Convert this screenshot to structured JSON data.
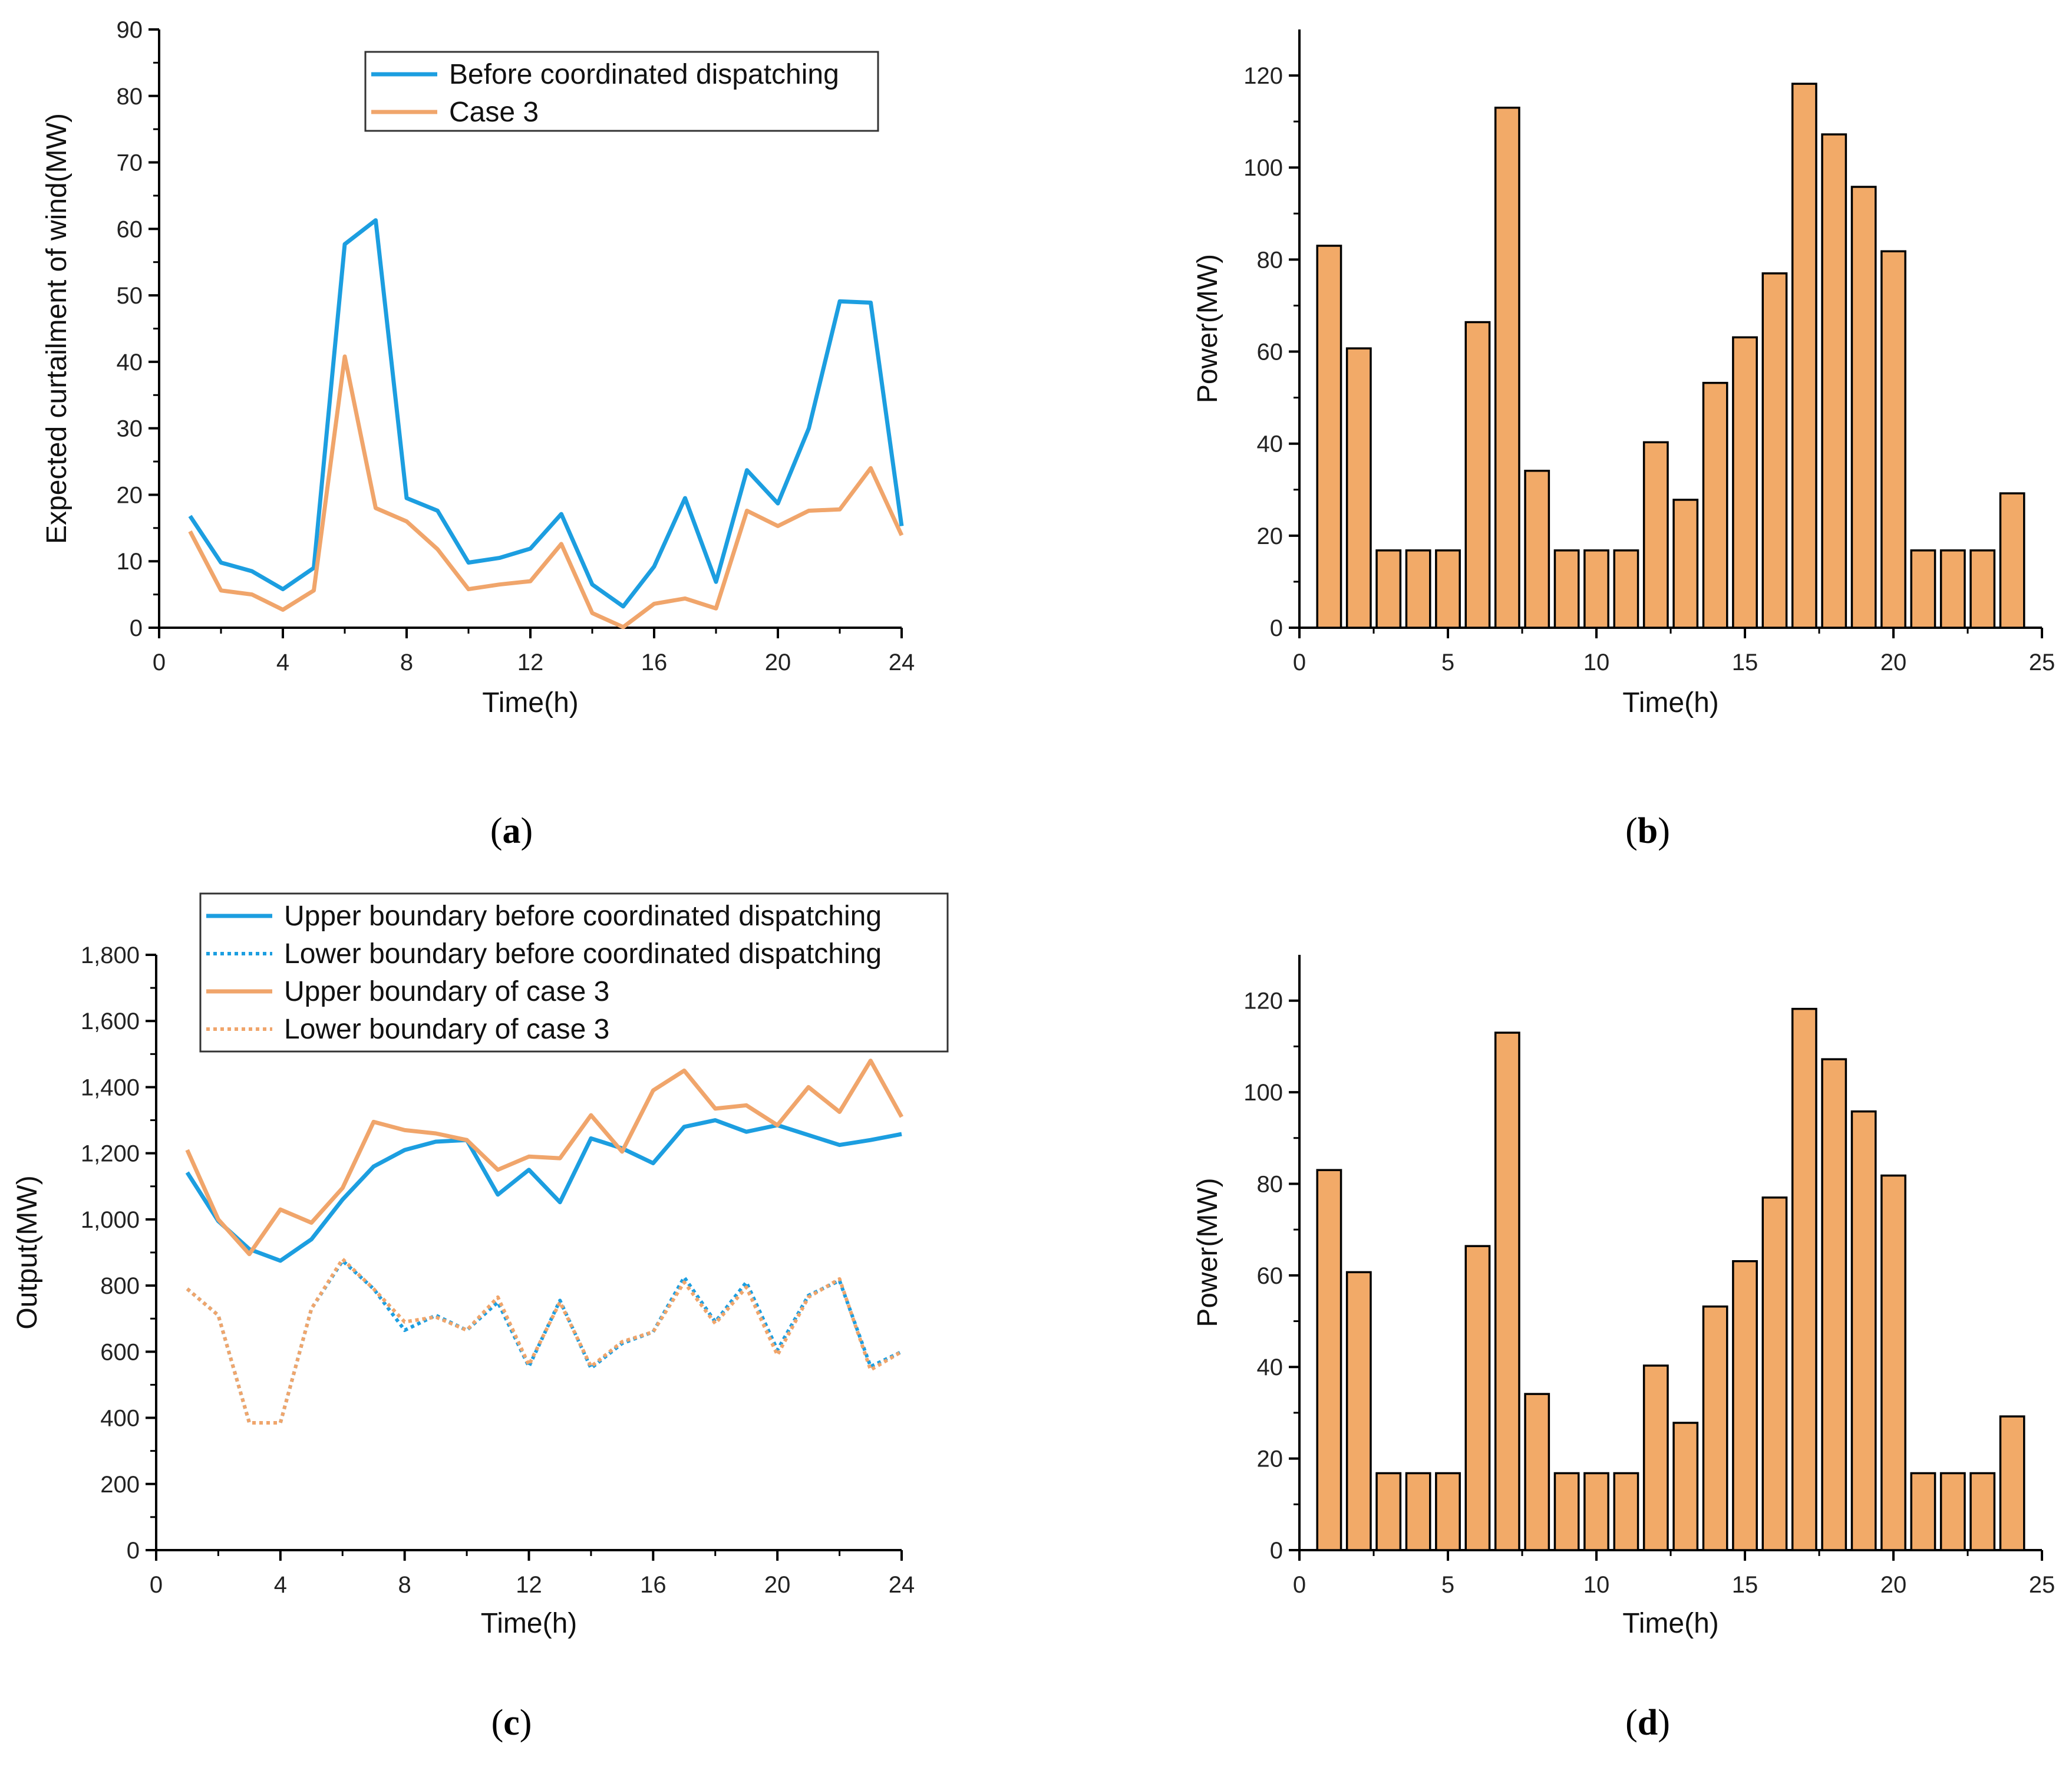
{
  "figure": {
    "panel_labels": [
      {
        "open": "(",
        "letter": "a",
        "close": ")"
      },
      {
        "open": "(",
        "letter": "b",
        "close": ")"
      },
      {
        "open": "(",
        "letter": "c",
        "close": ")"
      },
      {
        "open": "(",
        "letter": "d",
        "close": ")"
      }
    ]
  },
  "colors": {
    "blue": "#1c9ee0",
    "orange": "#f0a56b",
    "bar_fill": "#f2aa68",
    "bar_stroke": "#000000"
  },
  "chart_data": [
    {
      "id": "a",
      "type": "line",
      "xlabel": "Time(h)",
      "ylabel": "Expected curtailment of wind(MW)",
      "xlim": [
        0,
        24
      ],
      "ylim": [
        0,
        90
      ],
      "x_ticks": [
        0,
        4,
        8,
        12,
        16,
        20,
        24
      ],
      "x_tick_labels": [
        "0",
        "4",
        "8",
        "12",
        "16",
        "20",
        "24"
      ],
      "y_ticks": [
        0,
        10,
        20,
        30,
        40,
        50,
        60,
        70,
        80,
        90
      ],
      "y_tick_labels": [
        "0",
        "10",
        "20",
        "30",
        "40",
        "50",
        "60",
        "70",
        "80",
        "90"
      ],
      "legend": "top-center",
      "x": [
        1,
        2,
        3,
        4,
        5,
        6,
        7,
        8,
        9,
        10,
        11,
        12,
        13,
        14,
        15,
        16,
        17,
        18,
        19,
        20,
        21,
        22,
        23,
        24
      ],
      "series": [
        {
          "name": "Before coordinated dispatching",
          "color": "#1c9ee0",
          "style": "solid",
          "values": [
            16.8,
            9.8,
            8.5,
            5.8,
            9.0,
            57.7,
            61.3,
            19.5,
            17.6,
            9.8,
            10.5,
            11.9,
            17.1,
            6.5,
            3.2,
            9.2,
            19.5,
            6.9,
            23.7,
            18.7,
            30.0,
            49.1,
            48.9,
            15.3
          ]
        },
        {
          "name": "Case 3",
          "color": "#f0a56b",
          "style": "solid",
          "values": [
            14.5,
            5.6,
            5.0,
            2.7,
            5.6,
            40.8,
            18.0,
            16.0,
            11.8,
            5.8,
            6.5,
            7.0,
            12.6,
            2.2,
            0.1,
            3.6,
            4.4,
            2.9,
            17.6,
            15.3,
            17.6,
            17.8,
            24.0,
            13.9
          ]
        }
      ]
    },
    {
      "id": "b",
      "type": "bar",
      "xlabel": "Time(h)",
      "ylabel": "Power(MW)",
      "xlim": [
        0,
        25
      ],
      "ylim": [
        0,
        130
      ],
      "x_ticks": [
        0,
        5,
        10,
        15,
        20,
        25
      ],
      "x_tick_labels": [
        "0",
        "5",
        "10",
        "15",
        "20",
        "25"
      ],
      "y_ticks": [
        0,
        20,
        40,
        60,
        80,
        100,
        120
      ],
      "y_tick_labels": [
        "0",
        "20",
        "40",
        "60",
        "80",
        "100",
        "120"
      ],
      "categories": [
        1,
        2,
        3,
        4,
        5,
        6,
        7,
        8,
        9,
        10,
        11,
        12,
        13,
        14,
        15,
        16,
        17,
        18,
        19,
        20,
        21,
        22,
        23,
        24
      ],
      "values": [
        83.0,
        60.7,
        16.8,
        16.8,
        16.8,
        66.4,
        113.0,
        34.1,
        16.8,
        16.8,
        16.8,
        40.3,
        27.8,
        53.2,
        63.1,
        77.0,
        118.2,
        107.2,
        95.8,
        81.8,
        16.8,
        16.8,
        16.8,
        29.2
      ]
    },
    {
      "id": "c",
      "type": "line",
      "xlabel": "Time(h)",
      "ylabel": "Output(MW)",
      "xlim": [
        0,
        24
      ],
      "ylim": [
        0,
        1800
      ],
      "x_ticks": [
        0,
        4,
        8,
        12,
        16,
        20,
        24
      ],
      "x_tick_labels": [
        "0",
        "4",
        "8",
        "12",
        "16",
        "20",
        "24"
      ],
      "y_ticks": [
        0,
        200,
        400,
        600,
        800,
        1000,
        1200,
        1400,
        1600,
        1800
      ],
      "y_tick_labels": [
        "0",
        "200",
        "400",
        "600",
        "800",
        "1,000",
        "1,200",
        "1,400",
        "1,600",
        "1,800"
      ],
      "legend": "top-left",
      "x": [
        1,
        2,
        3,
        4,
        5,
        6,
        7,
        8,
        9,
        10,
        11,
        12,
        13,
        14,
        15,
        16,
        17,
        18,
        19,
        20,
        21,
        22,
        23,
        24
      ],
      "series": [
        {
          "name": "Upper boundary before coordinated dispatching",
          "color": "#1c9ee0",
          "style": "solid",
          "values": [
            1142,
            995,
            910,
            875,
            940,
            1060,
            1160,
            1210,
            1235,
            1240,
            1075,
            1150,
            1052,
            1245,
            1215,
            1170,
            1280,
            1300,
            1265,
            1285,
            1255,
            1225,
            1240,
            1258
          ]
        },
        {
          "name": "Lower boundary before coordinated dispatching",
          "color": "#1c9ee0",
          "style": "dotted",
          "values": [
            790,
            710,
            385,
            385,
            730,
            875,
            790,
            665,
            710,
            665,
            750,
            555,
            755,
            550,
            625,
            660,
            825,
            690,
            810,
            605,
            770,
            815,
            555,
            600
          ]
        },
        {
          "name": "Upper boundary of case 3",
          "color": "#f0a56b",
          "style": "solid",
          "values": [
            1210,
            1000,
            895,
            1030,
            990,
            1095,
            1295,
            1270,
            1260,
            1240,
            1150,
            1190,
            1185,
            1315,
            1205,
            1390,
            1450,
            1335,
            1345,
            1285,
            1400,
            1325,
            1480,
            1310
          ]
        },
        {
          "name": "Lower boundary of case 3",
          "color": "#f0a56b",
          "style": "dotted",
          "values": [
            790,
            710,
            385,
            385,
            730,
            880,
            790,
            690,
            705,
            665,
            765,
            560,
            750,
            555,
            630,
            660,
            810,
            685,
            795,
            590,
            765,
            820,
            545,
            600
          ]
        }
      ]
    },
    {
      "id": "d",
      "type": "bar",
      "xlabel": "Time(h)",
      "ylabel": "Power(MW)",
      "xlim": [
        0,
        25
      ],
      "ylim": [
        0,
        130
      ],
      "x_ticks": [
        0,
        5,
        10,
        15,
        20,
        25
      ],
      "x_tick_labels": [
        "0",
        "5",
        "10",
        "15",
        "20",
        "25"
      ],
      "y_ticks": [
        0,
        20,
        40,
        60,
        80,
        100,
        120
      ],
      "y_tick_labels": [
        "0",
        "20",
        "40",
        "60",
        "80",
        "100",
        "120"
      ],
      "categories": [
        1,
        2,
        3,
        4,
        5,
        6,
        7,
        8,
        9,
        10,
        11,
        12,
        13,
        14,
        15,
        16,
        17,
        18,
        19,
        20,
        21,
        22,
        23,
        24
      ],
      "values": [
        83.0,
        60.7,
        16.8,
        16.8,
        16.8,
        66.4,
        113.0,
        34.1,
        16.8,
        16.8,
        16.8,
        40.3,
        27.8,
        53.2,
        63.1,
        77.0,
        118.2,
        107.2,
        95.8,
        81.8,
        16.8,
        16.8,
        16.8,
        29.2
      ]
    }
  ]
}
